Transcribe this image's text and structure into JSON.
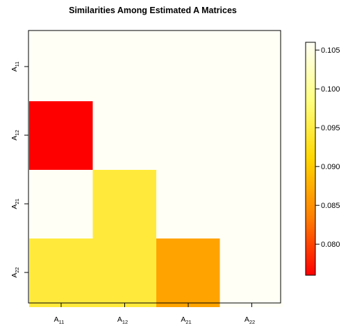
{
  "chart_data": {
    "type": "heatmap",
    "title": "Similarities Among Estimated A Matrices",
    "xlabel": "",
    "ylabel": "",
    "x_labels": [
      {
        "base": "A",
        "sub": "11"
      },
      {
        "base": "A",
        "sub": "12"
      },
      {
        "base": "A",
        "sub": "21"
      },
      {
        "base": "A",
        "sub": "22"
      }
    ],
    "y_labels": [
      {
        "base": "A",
        "sub": "11"
      },
      {
        "base": "A",
        "sub": "12"
      },
      {
        "base": "A",
        "sub": "21"
      },
      {
        "base": "A",
        "sub": "22"
      }
    ],
    "values": [
      [
        0.106,
        0.106,
        0.106,
        0.106
      ],
      [
        0.076,
        0.106,
        0.106,
        0.106
      ],
      [
        0.106,
        0.0945,
        0.106,
        0.106
      ],
      [
        0.0945,
        0.0945,
        0.0865,
        0.106
      ]
    ],
    "colorbar": {
      "min": 0.076,
      "max": 0.106,
      "ticks": [
        0.08,
        0.085,
        0.09,
        0.095,
        0.1,
        0.105
      ],
      "tick_labels": [
        "0.080",
        "0.085",
        "0.090",
        "0.095",
        "0.100",
        "0.105"
      ],
      "colors": [
        "#ff0000",
        "#ff8000",
        "#ffd700",
        "#ffff80",
        "#fffff6"
      ]
    }
  }
}
